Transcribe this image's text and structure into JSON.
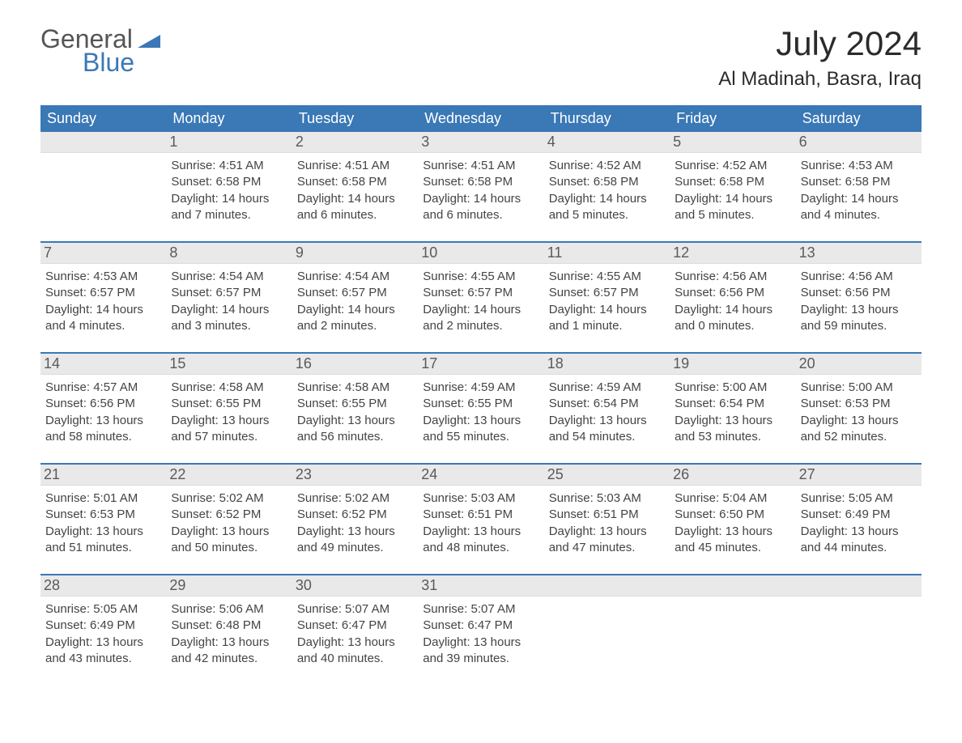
{
  "brand": {
    "general": "General",
    "blue": "Blue"
  },
  "header": {
    "month_year": "July 2024",
    "location": "Al Madinah, Basra, Iraq"
  },
  "colors": {
    "header_bg": "#3a78b6",
    "header_text": "#ffffff",
    "daynum_bg": "#e9e9e9",
    "text": "#444444",
    "accent": "#3a78b6"
  },
  "weekdays": [
    "Sunday",
    "Monday",
    "Tuesday",
    "Wednesday",
    "Thursday",
    "Friday",
    "Saturday"
  ],
  "weeks": [
    [
      null,
      {
        "num": "1",
        "sunrise": "Sunrise: 4:51 AM",
        "sunset": "Sunset: 6:58 PM",
        "dl1": "Daylight: 14 hours",
        "dl2": "and 7 minutes."
      },
      {
        "num": "2",
        "sunrise": "Sunrise: 4:51 AM",
        "sunset": "Sunset: 6:58 PM",
        "dl1": "Daylight: 14 hours",
        "dl2": "and 6 minutes."
      },
      {
        "num": "3",
        "sunrise": "Sunrise: 4:51 AM",
        "sunset": "Sunset: 6:58 PM",
        "dl1": "Daylight: 14 hours",
        "dl2": "and 6 minutes."
      },
      {
        "num": "4",
        "sunrise": "Sunrise: 4:52 AM",
        "sunset": "Sunset: 6:58 PM",
        "dl1": "Daylight: 14 hours",
        "dl2": "and 5 minutes."
      },
      {
        "num": "5",
        "sunrise": "Sunrise: 4:52 AM",
        "sunset": "Sunset: 6:58 PM",
        "dl1": "Daylight: 14 hours",
        "dl2": "and 5 minutes."
      },
      {
        "num": "6",
        "sunrise": "Sunrise: 4:53 AM",
        "sunset": "Sunset: 6:58 PM",
        "dl1": "Daylight: 14 hours",
        "dl2": "and 4 minutes."
      }
    ],
    [
      {
        "num": "7",
        "sunrise": "Sunrise: 4:53 AM",
        "sunset": "Sunset: 6:57 PM",
        "dl1": "Daylight: 14 hours",
        "dl2": "and 4 minutes."
      },
      {
        "num": "8",
        "sunrise": "Sunrise: 4:54 AM",
        "sunset": "Sunset: 6:57 PM",
        "dl1": "Daylight: 14 hours",
        "dl2": "and 3 minutes."
      },
      {
        "num": "9",
        "sunrise": "Sunrise: 4:54 AM",
        "sunset": "Sunset: 6:57 PM",
        "dl1": "Daylight: 14 hours",
        "dl2": "and 2 minutes."
      },
      {
        "num": "10",
        "sunrise": "Sunrise: 4:55 AM",
        "sunset": "Sunset: 6:57 PM",
        "dl1": "Daylight: 14 hours",
        "dl2": "and 2 minutes."
      },
      {
        "num": "11",
        "sunrise": "Sunrise: 4:55 AM",
        "sunset": "Sunset: 6:57 PM",
        "dl1": "Daylight: 14 hours",
        "dl2": "and 1 minute."
      },
      {
        "num": "12",
        "sunrise": "Sunrise: 4:56 AM",
        "sunset": "Sunset: 6:56 PM",
        "dl1": "Daylight: 14 hours",
        "dl2": "and 0 minutes."
      },
      {
        "num": "13",
        "sunrise": "Sunrise: 4:56 AM",
        "sunset": "Sunset: 6:56 PM",
        "dl1": "Daylight: 13 hours",
        "dl2": "and 59 minutes."
      }
    ],
    [
      {
        "num": "14",
        "sunrise": "Sunrise: 4:57 AM",
        "sunset": "Sunset: 6:56 PM",
        "dl1": "Daylight: 13 hours",
        "dl2": "and 58 minutes."
      },
      {
        "num": "15",
        "sunrise": "Sunrise: 4:58 AM",
        "sunset": "Sunset: 6:55 PM",
        "dl1": "Daylight: 13 hours",
        "dl2": "and 57 minutes."
      },
      {
        "num": "16",
        "sunrise": "Sunrise: 4:58 AM",
        "sunset": "Sunset: 6:55 PM",
        "dl1": "Daylight: 13 hours",
        "dl2": "and 56 minutes."
      },
      {
        "num": "17",
        "sunrise": "Sunrise: 4:59 AM",
        "sunset": "Sunset: 6:55 PM",
        "dl1": "Daylight: 13 hours",
        "dl2": "and 55 minutes."
      },
      {
        "num": "18",
        "sunrise": "Sunrise: 4:59 AM",
        "sunset": "Sunset: 6:54 PM",
        "dl1": "Daylight: 13 hours",
        "dl2": "and 54 minutes."
      },
      {
        "num": "19",
        "sunrise": "Sunrise: 5:00 AM",
        "sunset": "Sunset: 6:54 PM",
        "dl1": "Daylight: 13 hours",
        "dl2": "and 53 minutes."
      },
      {
        "num": "20",
        "sunrise": "Sunrise: 5:00 AM",
        "sunset": "Sunset: 6:53 PM",
        "dl1": "Daylight: 13 hours",
        "dl2": "and 52 minutes."
      }
    ],
    [
      {
        "num": "21",
        "sunrise": "Sunrise: 5:01 AM",
        "sunset": "Sunset: 6:53 PM",
        "dl1": "Daylight: 13 hours",
        "dl2": "and 51 minutes."
      },
      {
        "num": "22",
        "sunrise": "Sunrise: 5:02 AM",
        "sunset": "Sunset: 6:52 PM",
        "dl1": "Daylight: 13 hours",
        "dl2": "and 50 minutes."
      },
      {
        "num": "23",
        "sunrise": "Sunrise: 5:02 AM",
        "sunset": "Sunset: 6:52 PM",
        "dl1": "Daylight: 13 hours",
        "dl2": "and 49 minutes."
      },
      {
        "num": "24",
        "sunrise": "Sunrise: 5:03 AM",
        "sunset": "Sunset: 6:51 PM",
        "dl1": "Daylight: 13 hours",
        "dl2": "and 48 minutes."
      },
      {
        "num": "25",
        "sunrise": "Sunrise: 5:03 AM",
        "sunset": "Sunset: 6:51 PM",
        "dl1": "Daylight: 13 hours",
        "dl2": "and 47 minutes."
      },
      {
        "num": "26",
        "sunrise": "Sunrise: 5:04 AM",
        "sunset": "Sunset: 6:50 PM",
        "dl1": "Daylight: 13 hours",
        "dl2": "and 45 minutes."
      },
      {
        "num": "27",
        "sunrise": "Sunrise: 5:05 AM",
        "sunset": "Sunset: 6:49 PM",
        "dl1": "Daylight: 13 hours",
        "dl2": "and 44 minutes."
      }
    ],
    [
      {
        "num": "28",
        "sunrise": "Sunrise: 5:05 AM",
        "sunset": "Sunset: 6:49 PM",
        "dl1": "Daylight: 13 hours",
        "dl2": "and 43 minutes."
      },
      {
        "num": "29",
        "sunrise": "Sunrise: 5:06 AM",
        "sunset": "Sunset: 6:48 PM",
        "dl1": "Daylight: 13 hours",
        "dl2": "and 42 minutes."
      },
      {
        "num": "30",
        "sunrise": "Sunrise: 5:07 AM",
        "sunset": "Sunset: 6:47 PM",
        "dl1": "Daylight: 13 hours",
        "dl2": "and 40 minutes."
      },
      {
        "num": "31",
        "sunrise": "Sunrise: 5:07 AM",
        "sunset": "Sunset: 6:47 PM",
        "dl1": "Daylight: 13 hours",
        "dl2": "and 39 minutes."
      },
      null,
      null,
      null
    ]
  ]
}
